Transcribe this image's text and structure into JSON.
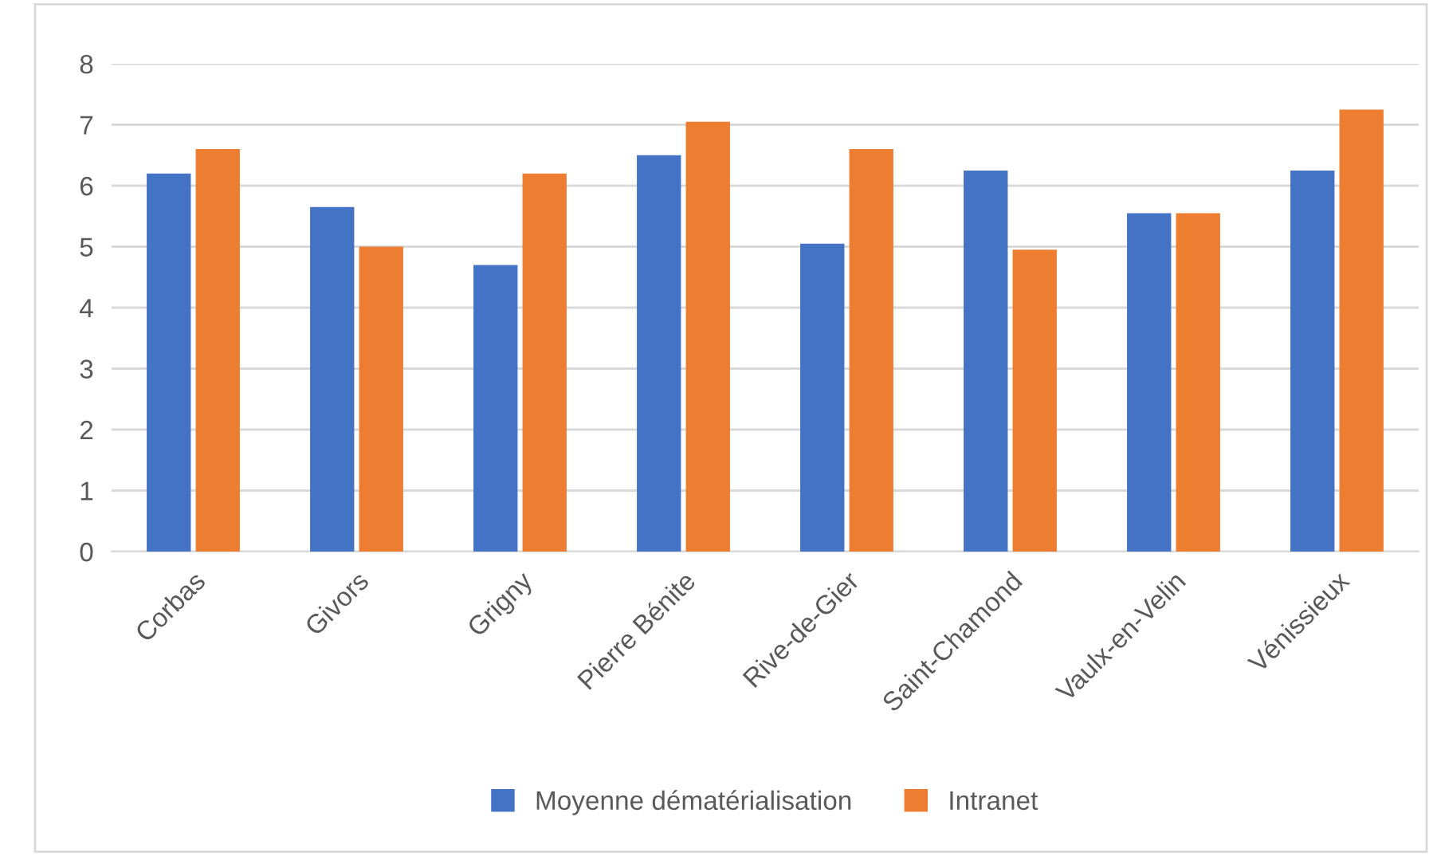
{
  "chart_data": {
    "type": "bar",
    "categories": [
      "Corbas",
      "Givors",
      "Grigny",
      "Pierre Bénite",
      "Rive-de-Gier",
      "Saint-Chamond",
      "Vaulx-en-Velin",
      "Vénissieux"
    ],
    "series": [
      {
        "name": "Moyenne dématérialisation",
        "color": "#4472c4",
        "values": [
          6.2,
          5.65,
          4.7,
          6.5,
          5.05,
          6.25,
          5.55,
          6.25
        ]
      },
      {
        "name": "Intranet",
        "color": "#ed7d31",
        "values": [
          6.6,
          5.0,
          6.2,
          7.05,
          6.6,
          4.95,
          5.55,
          7.25
        ]
      }
    ],
    "ylim": [
      0,
      8
    ],
    "yticks": [
      0,
      1,
      2,
      3,
      4,
      5,
      6,
      7,
      8
    ],
    "grid": "y",
    "legend": "bottom"
  }
}
